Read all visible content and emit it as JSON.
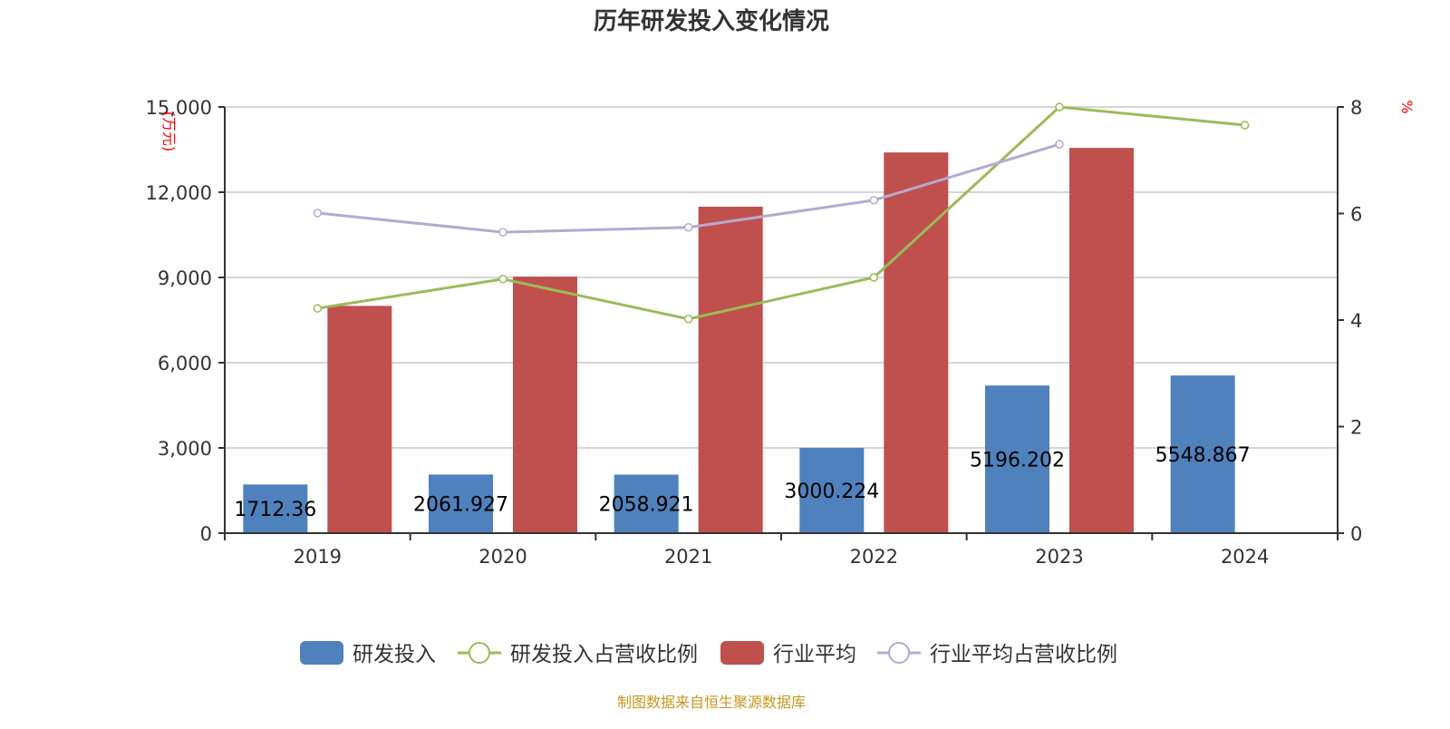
{
  "chart_data": {
    "type": "bar",
    "title": "历年研发投入变化情况",
    "categories": [
      "2019",
      "2020",
      "2021",
      "2022",
      "2023",
      "2024"
    ],
    "y_left": {
      "label": "(万元)",
      "range": [
        0,
        15000
      ],
      "ticks": [
        0,
        3000,
        6000,
        9000,
        12000,
        15000
      ],
      "tick_labels": [
        "0",
        "3,000",
        "6,000",
        "9,000",
        "12,000",
        "15,000"
      ]
    },
    "y_right": {
      "label": "%",
      "range": [
        0,
        8
      ],
      "ticks": [
        0,
        2,
        4,
        6,
        8
      ],
      "tick_labels": [
        "0",
        "2",
        "4",
        "6",
        "8"
      ]
    },
    "grid": true,
    "legend_position": "bottom",
    "series": [
      {
        "name": "研发投入",
        "type": "bar",
        "axis": "left",
        "color": "#4f81bd",
        "values": [
          1712.36,
          2061.927,
          2058.921,
          3000.224,
          5196.202,
          5548.867
        ],
        "labels": [
          "1712.36",
          "2061.927",
          "2058.921",
          "3000.224",
          "5196.202",
          "5548.867"
        ]
      },
      {
        "name": "研发投入占营收比例",
        "type": "line",
        "axis": "right",
        "color": "#9bbb59",
        "values": [
          4.22,
          4.77,
          4.02,
          4.8,
          8.0,
          7.66
        ]
      },
      {
        "name": "行业平均",
        "type": "bar",
        "axis": "left",
        "color": "#c0504d",
        "values": [
          8000,
          9030,
          11490,
          13400,
          13560,
          null
        ]
      },
      {
        "name": "行业平均占营收比例",
        "type": "line",
        "axis": "right",
        "color": "#b7a9cf",
        "values": [
          6.01,
          5.65,
          5.74,
          6.25,
          7.3,
          null
        ]
      }
    ]
  },
  "footer": {
    "source": "制图数据来自恒生聚源数据库",
    "color": "#c8961e"
  }
}
